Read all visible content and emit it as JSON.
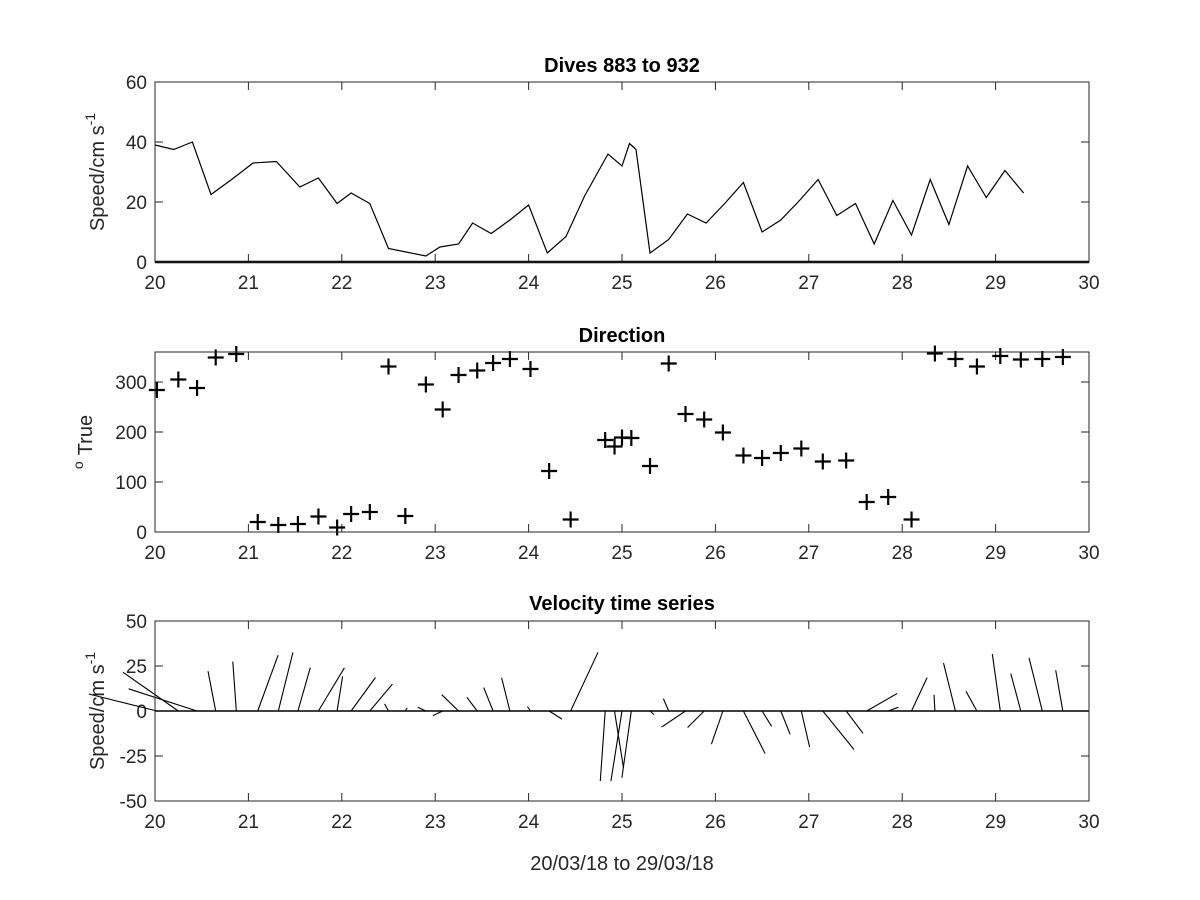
{
  "figure": {
    "xlabel": "20/03/18 to 29/03/18"
  },
  "chart_data": [
    {
      "type": "line",
      "title": "Dives 883 to 932",
      "ylabel": "Speed/cm s",
      "ylabel_sup": "-1",
      "xlim": [
        20,
        30
      ],
      "ylim": [
        0,
        60
      ],
      "xticks": [
        "20",
        "21",
        "22",
        "23",
        "24",
        "25",
        "26",
        "27",
        "28",
        "29",
        "30"
      ],
      "yticks": [
        "0",
        "20",
        "40",
        "60"
      ],
      "x": [
        20.0,
        20.2,
        20.4,
        20.6,
        20.82,
        21.05,
        21.3,
        21.55,
        21.75,
        21.95,
        22.1,
        22.3,
        22.5,
        22.9,
        23.05,
        23.25,
        23.4,
        23.6,
        23.8,
        24.0,
        24.2,
        24.4,
        24.6,
        24.85,
        25.0,
        25.08,
        25.15,
        25.3,
        25.5,
        25.7,
        25.9,
        26.1,
        26.3,
        26.5,
        26.7,
        26.9,
        27.1,
        27.3,
        27.5,
        27.7,
        27.9,
        28.1,
        28.3,
        28.5,
        28.7,
        28.9,
        29.1,
        29.3,
        29.5,
        29.7
      ],
      "values": [
        39,
        37.5,
        40,
        22.5,
        27.5,
        33,
        33.5,
        25,
        28,
        19.5,
        23,
        19.5,
        4.5,
        2,
        5,
        6,
        13,
        9.5,
        14,
        19,
        3,
        8.5,
        22,
        36,
        32,
        39.5,
        37.5,
        3,
        7.5,
        16,
        13,
        19.5,
        26.5,
        10,
        14,
        20.5,
        27.5,
        15.5,
        19.5,
        6,
        20.5,
        9,
        27.5,
        12.5,
        32,
        21.5,
        30.5,
        23,
        null,
        null
      ]
    },
    {
      "type": "scatter",
      "title": "Direction",
      "ylabel": "True",
      "ylabel_sup": "o",
      "marker": "+",
      "xlim": [
        20,
        30
      ],
      "ylim": [
        0,
        360
      ],
      "xticks": [
        "20",
        "21",
        "22",
        "23",
        "24",
        "25",
        "26",
        "27",
        "28",
        "29",
        "30"
      ],
      "yticks": [
        "0",
        "100",
        "200",
        "300"
      ],
      "x": [
        20.02,
        20.25,
        20.45,
        20.65,
        20.87,
        21.1,
        21.32,
        21.53,
        21.75,
        21.95,
        22.1,
        22.3,
        22.5,
        22.68,
        22.9,
        23.08,
        23.25,
        23.45,
        23.62,
        23.8,
        24.02,
        24.22,
        24.45,
        24.82,
        24.92,
        25.0,
        25.1,
        25.3,
        25.5,
        25.68,
        25.88,
        26.08,
        26.3,
        26.5,
        26.7,
        26.92,
        27.15,
        27.4,
        27.62,
        27.85,
        28.1,
        28.35,
        28.57,
        28.8,
        29.05,
        29.27,
        29.5,
        29.72
      ],
      "values": [
        284,
        305,
        288,
        349,
        356,
        20,
        14,
        16,
        31,
        9,
        36,
        40,
        331,
        32,
        295,
        245,
        314,
        323,
        338,
        346,
        326,
        122,
        25,
        184,
        171,
        189,
        188,
        132,
        337,
        236,
        225,
        199,
        153,
        148,
        158,
        167,
        141,
        143,
        60,
        70,
        25,
        357,
        346,
        331,
        352,
        345,
        346,
        350
      ]
    },
    {
      "type": "stick",
      "title": "Velocity time series",
      "ylabel": "Speed/cm s",
      "ylabel_sup": "-1",
      "xlim": [
        20,
        30
      ],
      "ylim": [
        -50,
        50
      ],
      "yticks": [
        "-50",
        "-25",
        "0",
        "25",
        "50"
      ],
      "xticks": [
        "20",
        "21",
        "22",
        "23",
        "24",
        "25",
        "26",
        "27",
        "28",
        "29",
        "30"
      ],
      "x": [
        20.02,
        20.25,
        20.45,
        20.65,
        20.87,
        21.1,
        21.32,
        21.53,
        21.75,
        21.95,
        22.1,
        22.3,
        22.5,
        22.68,
        22.9,
        23.08,
        23.25,
        23.45,
        23.62,
        23.8,
        24.02,
        24.22,
        24.45,
        24.82,
        24.92,
        25.0,
        25.1,
        25.3,
        25.5,
        25.68,
        25.88,
        26.08,
        26.3,
        26.5,
        26.7,
        26.92,
        27.15,
        27.4,
        27.62,
        27.85,
        28.1,
        28.35,
        28.57,
        28.8,
        29.05,
        29.27,
        29.5,
        29.72
      ],
      "speed": [
        39,
        37.5,
        40,
        22.5,
        27.5,
        33,
        33.5,
        25,
        28,
        19.5,
        23,
        19.5,
        4.5,
        2,
        5,
        6,
        13,
        9.5,
        14,
        19,
        3,
        8.5,
        36,
        39,
        32,
        39.5,
        37.5,
        3,
        7.5,
        16,
        13,
        19.5,
        26.5,
        10,
        14,
        20.5,
        27.5,
        15.5,
        19.5,
        6,
        20.5,
        9,
        27.5,
        12.5,
        32,
        21.5,
        30.5,
        23
      ],
      "direction": [
        284,
        305,
        288,
        349,
        356,
        20,
        14,
        16,
        31,
        9,
        36,
        40,
        331,
        32,
        295,
        245,
        314,
        323,
        338,
        346,
        326,
        122,
        25,
        184,
        171,
        189,
        188,
        132,
        337,
        236,
        225,
        199,
        153,
        148,
        158,
        167,
        141,
        143,
        60,
        70,
        25,
        357,
        346,
        331,
        352,
        345,
        346,
        350
      ]
    }
  ]
}
